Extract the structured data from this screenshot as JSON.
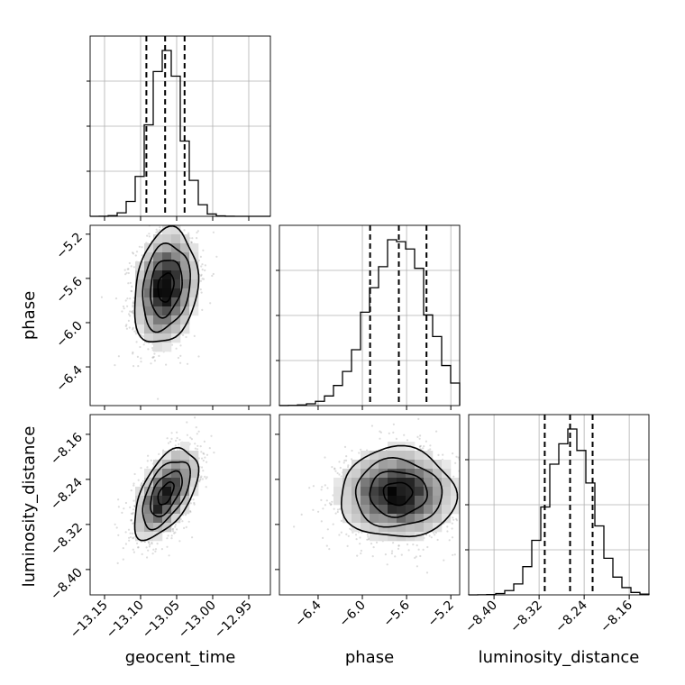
{
  "chart_data": {
    "type": "corner",
    "parameters": [
      "geocent_time",
      "phase",
      "luminosity_distance"
    ],
    "grid": true,
    "quantile_lines": "dashed",
    "panels": {
      "geocent_time": {
        "type": "histogram",
        "range": [
          -13.17,
          -12.92
        ],
        "ticks": [
          "−13.15",
          "−13.10",
          "−13.05",
          "−13.00",
          "−12.95"
        ],
        "tick_values": [
          -13.15,
          -13.1,
          -13.05,
          -13.0,
          -12.95
        ],
        "quantiles": [
          -13.092,
          -13.066,
          -13.039
        ],
        "mean": -13.065,
        "sd": 0.022
      },
      "phase": {
        "type": "histogram",
        "range": [
          -6.75,
          -5.12
        ],
        "ticks": [
          "−6.4",
          "−6.0",
          "−5.6",
          "−5.2"
        ],
        "tick_values": [
          -6.4,
          -6.0,
          -5.6,
          -5.2
        ],
        "quantiles": [
          -5.93,
          -5.67,
          -5.42
        ],
        "mean": -5.68,
        "sd": 0.26
      },
      "luminosity_distance": {
        "type": "histogram",
        "range": [
          -8.445,
          -8.125
        ],
        "ticks": [
          "−8.40",
          "−8.32",
          "−8.24",
          "−8.16"
        ],
        "tick_values": [
          -8.4,
          -8.32,
          -8.24,
          -8.16
        ],
        "quantiles": [
          -8.31,
          -8.265,
          -8.225
        ],
        "mean": -8.265,
        "sd": 0.04
      },
      "phase_vs_geocent_time": {
        "type": "2d-density",
        "x": "geocent_time",
        "y": "phase",
        "correlation": 0.2
      },
      "luminosity_distance_vs_geocent_time": {
        "type": "2d-density",
        "x": "geocent_time",
        "y": "luminosity_distance",
        "correlation": 0.55
      },
      "luminosity_distance_vs_phase": {
        "type": "2d-density",
        "x": "phase",
        "y": "luminosity_distance",
        "correlation": 0.0
      }
    }
  }
}
